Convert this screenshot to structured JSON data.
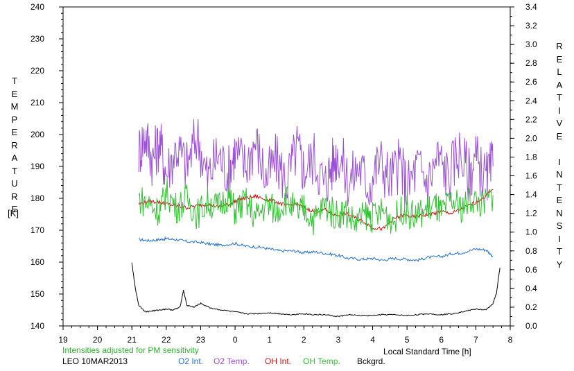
{
  "chart_data": {
    "type": "line",
    "xlabel": "Local Standard Time [h]",
    "ylabel_left": "TEMPERATURE",
    "ylabel_left_unit": "[K]",
    "ylabel_right": "RELATIVE INTENSITY",
    "x_ticks": [
      "19",
      "20",
      "21",
      "22",
      "23",
      "0",
      "1",
      "2",
      "3",
      "4",
      "5",
      "6",
      "7",
      "8"
    ],
    "x_range": [
      19,
      32
    ],
    "y_left_range": [
      140,
      240
    ],
    "y_left_ticks": [
      "140",
      "150",
      "160",
      "170",
      "180",
      "190",
      "200",
      "210",
      "220",
      "230",
      "240"
    ],
    "y_right_range": [
      0.0,
      3.4
    ],
    "y_right_ticks": [
      "0.0",
      "0.2",
      "0.4",
      "0.6",
      "0.8",
      "1.0",
      "1.2",
      "1.4",
      "1.6",
      "1.8",
      "2.0",
      "2.2",
      "2.4",
      "2.6",
      "2.8",
      "3.0",
      "3.2",
      "3.4"
    ],
    "note": "Intensities adjusted for PM sensitivity",
    "station": "LEO 10MAR2013",
    "series": [
      {
        "name": "O2 Int.",
        "axis": "right",
        "color": "#1f6fd0",
        "x": [
          21.2,
          21.5,
          21.8,
          22.0,
          22.3,
          22.6,
          23.0,
          23.3,
          23.6,
          24.0,
          24.3,
          24.7,
          25.0,
          25.3,
          25.7,
          26.0,
          26.3,
          26.7,
          27.0,
          27.3,
          27.7,
          28.0,
          28.3,
          28.6,
          29.0,
          29.3,
          29.6,
          30.0,
          30.3,
          30.6,
          31.0,
          31.3,
          31.5
        ],
        "y": [
          0.92,
          0.91,
          0.92,
          0.93,
          0.92,
          0.9,
          0.89,
          0.87,
          0.86,
          0.88,
          0.85,
          0.84,
          0.82,
          0.8,
          0.8,
          0.78,
          0.79,
          0.77,
          0.75,
          0.72,
          0.71,
          0.72,
          0.7,
          0.72,
          0.71,
          0.7,
          0.73,
          0.74,
          0.77,
          0.78,
          0.82,
          0.81,
          0.74
        ]
      },
      {
        "name": "O2 Temp.",
        "axis": "left",
        "color": "#9b4fd8",
        "x": [
          21.2,
          21.4,
          21.6,
          21.8,
          22.0,
          22.3,
          22.6,
          22.9,
          23.2,
          23.5,
          23.8,
          24.0,
          24.3,
          24.6,
          24.9,
          25.2,
          25.5,
          25.8,
          26.0,
          26.3,
          26.6,
          26.8,
          27.0,
          27.3,
          27.6,
          27.9,
          28.2,
          28.5,
          28.8,
          29.0,
          29.3,
          29.6,
          29.9,
          30.2,
          30.5,
          30.8,
          31.0,
          31.3,
          31.5
        ],
        "y": [
          195,
          200,
          192,
          198,
          188,
          196,
          190,
          200,
          186,
          194,
          188,
          195,
          190,
          198,
          186,
          192,
          185,
          196,
          189,
          193,
          184,
          190,
          195,
          185,
          190,
          184,
          192,
          186,
          191,
          183,
          190,
          185,
          193,
          187,
          195,
          188,
          192,
          186,
          190
        ]
      },
      {
        "name": "OH Int.",
        "axis": "right",
        "color": "#d01010",
        "x": [
          21.2,
          21.5,
          21.8,
          22.0,
          22.3,
          22.6,
          22.9,
          23.2,
          23.5,
          23.8,
          24.0,
          24.3,
          24.6,
          24.9,
          25.2,
          25.5,
          25.8,
          26.0,
          26.3,
          26.6,
          26.9,
          27.2,
          27.5,
          27.8,
          28.0,
          28.3,
          28.6,
          28.9,
          29.2,
          29.5,
          29.8,
          30.0,
          30.3,
          30.6,
          30.9,
          31.2,
          31.5
        ],
        "y": [
          1.3,
          1.33,
          1.32,
          1.3,
          1.28,
          1.26,
          1.28,
          1.3,
          1.27,
          1.29,
          1.33,
          1.36,
          1.38,
          1.35,
          1.32,
          1.28,
          1.3,
          1.26,
          1.22,
          1.24,
          1.18,
          1.2,
          1.15,
          1.1,
          1.05,
          1.03,
          1.14,
          1.18,
          1.16,
          1.18,
          1.2,
          1.22,
          1.2,
          1.25,
          1.3,
          1.36,
          1.45
        ]
      },
      {
        "name": "OH Temp.",
        "axis": "left",
        "color": "#2ec42e",
        "x": [
          21.2,
          21.5,
          21.8,
          22.0,
          22.3,
          22.6,
          22.9,
          23.2,
          23.5,
          23.8,
          24.0,
          24.3,
          24.6,
          24.9,
          25.2,
          25.5,
          25.8,
          26.0,
          26.3,
          26.6,
          26.9,
          27.2,
          27.5,
          27.8,
          28.0,
          28.3,
          28.6,
          28.9,
          29.2,
          29.5,
          29.8,
          30.0,
          30.3,
          30.6,
          30.9,
          31.2,
          31.5
        ],
        "y": [
          180,
          178,
          176,
          182,
          177,
          180,
          175,
          179,
          177,
          181,
          176,
          179,
          174,
          178,
          176,
          180,
          175,
          177,
          173,
          178,
          175,
          176,
          172,
          175,
          174,
          176,
          173,
          177,
          174,
          176,
          178,
          175,
          179,
          177,
          180,
          178,
          181
        ]
      },
      {
        "name": "Bckgrd.",
        "axis": "right",
        "color": "#000000",
        "x": [
          21.0,
          21.1,
          21.2,
          21.4,
          21.6,
          21.8,
          22.0,
          22.2,
          22.4,
          22.5,
          22.6,
          22.8,
          23.0,
          23.3,
          23.6,
          24.0,
          24.3,
          24.6,
          25.0,
          25.3,
          25.6,
          26.0,
          26.3,
          26.6,
          27.0,
          27.3,
          27.6,
          28.0,
          28.3,
          28.6,
          29.0,
          29.3,
          29.6,
          30.0,
          30.3,
          30.6,
          31.0,
          31.3,
          31.5,
          31.6,
          31.7
        ],
        "y": [
          0.67,
          0.4,
          0.22,
          0.15,
          0.16,
          0.17,
          0.18,
          0.17,
          0.2,
          0.38,
          0.22,
          0.2,
          0.24,
          0.19,
          0.17,
          0.15,
          0.13,
          0.13,
          0.14,
          0.13,
          0.12,
          0.13,
          0.12,
          0.12,
          0.1,
          0.12,
          0.11,
          0.11,
          0.12,
          0.12,
          0.11,
          0.12,
          0.13,
          0.12,
          0.13,
          0.15,
          0.18,
          0.17,
          0.24,
          0.35,
          0.62
        ]
      }
    ]
  }
}
